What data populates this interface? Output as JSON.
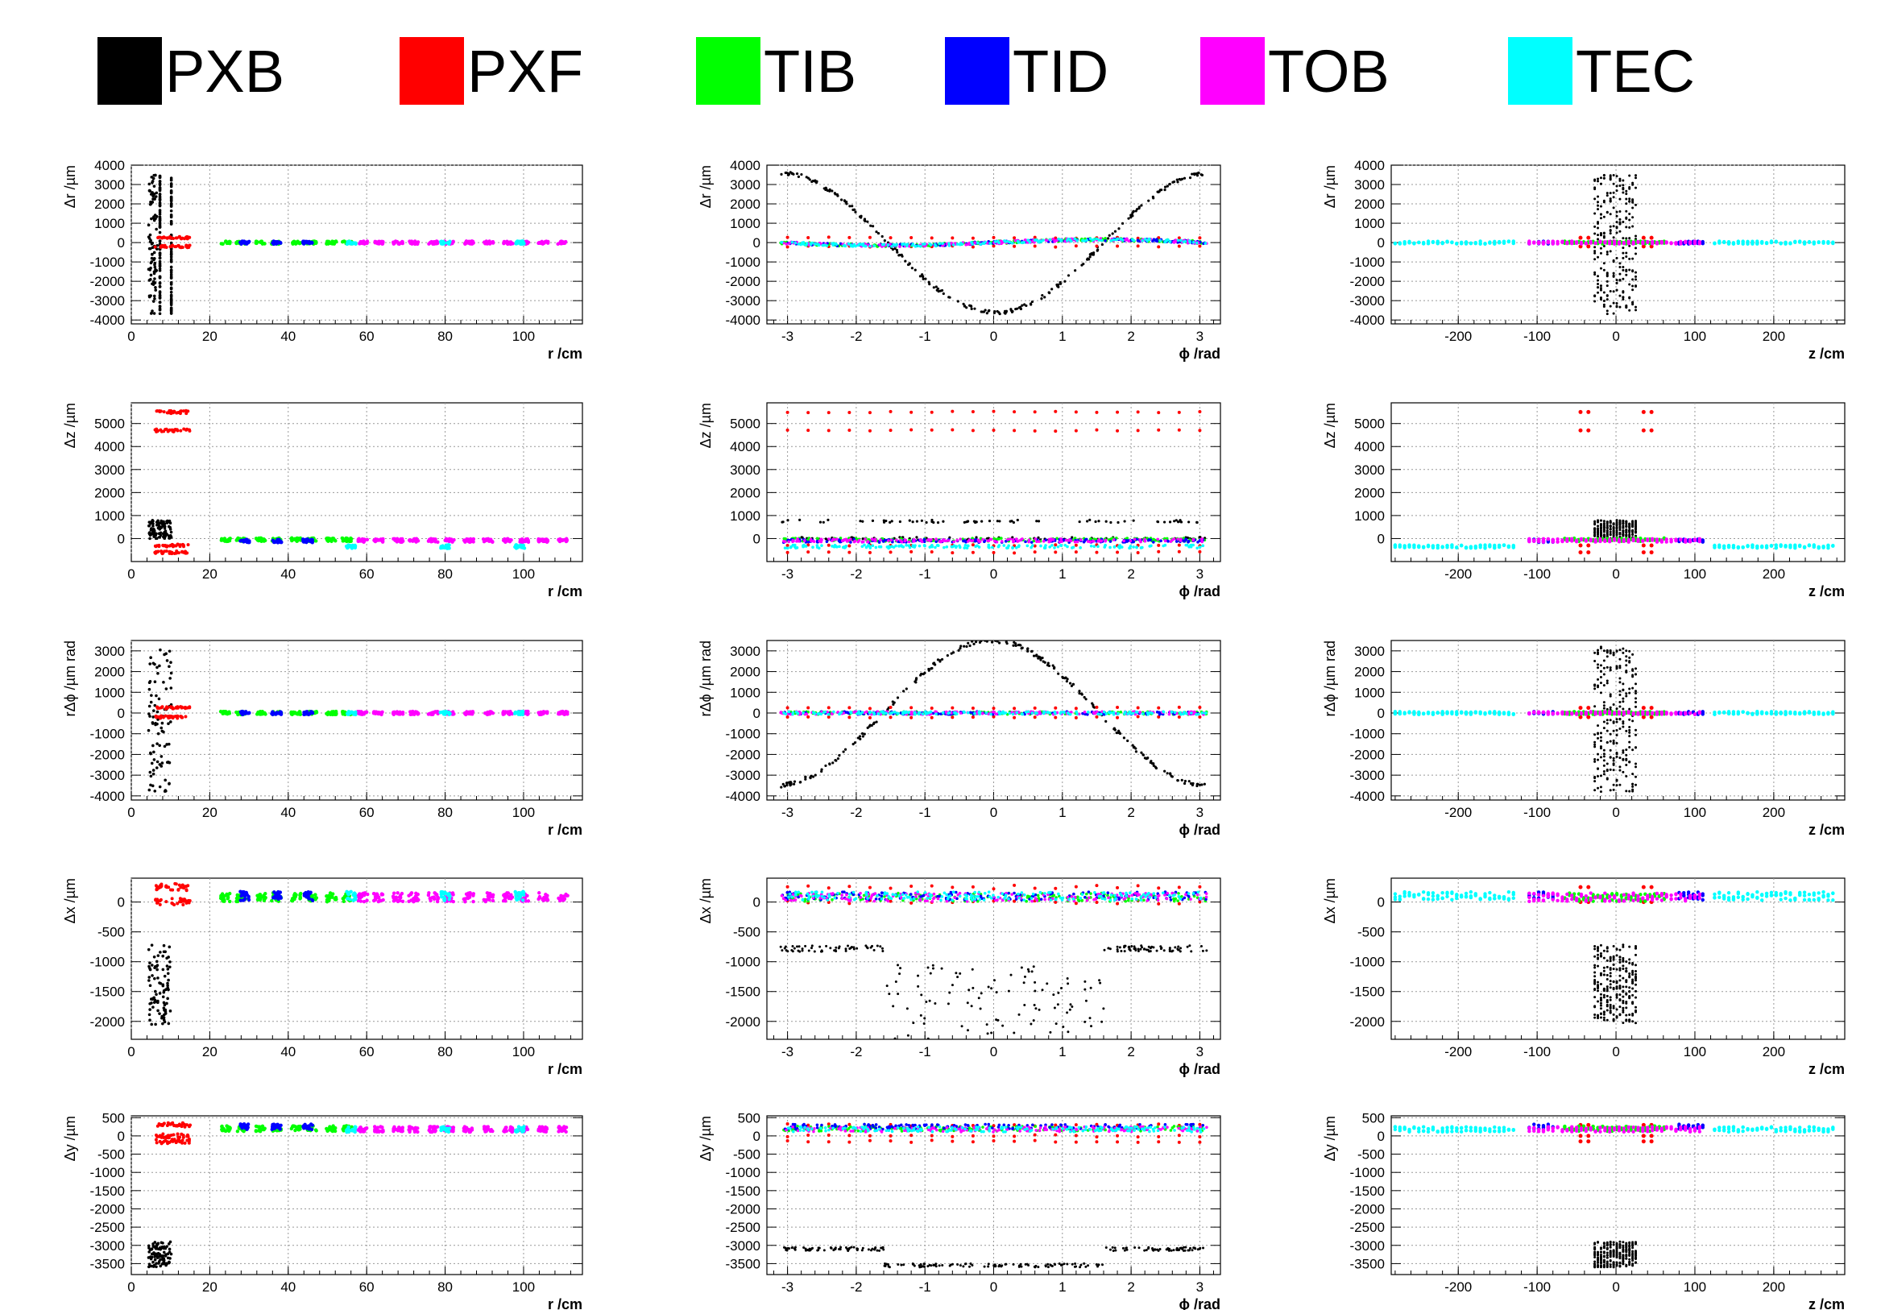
{
  "legend": [
    {
      "label": "PXB",
      "color": "#000000"
    },
    {
      "label": "PXF",
      "color": "#ff0000"
    },
    {
      "label": "TIB",
      "color": "#00ff00"
    },
    {
      "label": "TID",
      "color": "#0000ff"
    },
    {
      "label": "TOB",
      "color": "#ff00ff"
    },
    {
      "label": "TEC",
      "color": "#00ffff"
    }
  ],
  "chart_data": {
    "type": "scatter",
    "grid": true,
    "columns": [
      {
        "xlabel": "r /cm",
        "xlim": [
          0,
          115
        ],
        "xticks": [
          "0",
          "20",
          "40",
          "60",
          "80",
          "100"
        ]
      },
      {
        "xlabel": "ϕ /rad",
        "xlim": [
          -3.3,
          3.3
        ],
        "xticks": [
          "-3",
          "-2",
          "-1",
          "0",
          "1",
          "2",
          "3"
        ]
      },
      {
        "xlabel": "z /cm",
        "xlim": [
          -285,
          290
        ],
        "xticks": [
          "-200",
          "-100",
          "0",
          "100",
          "200"
        ]
      }
    ],
    "rows": [
      {
        "ylabel": "Δr /µm",
        "ylim": [
          -4200,
          4000
        ],
        "yticks": [
          "-4000",
          "-3000",
          "-2000",
          "-1000",
          "0",
          "1000",
          "2000",
          "3000",
          "4000"
        ]
      },
      {
        "ylabel": "Δz /µm",
        "ylim": [
          -1000,
          5900
        ],
        "yticks": [
          "0",
          "1000",
          "2000",
          "3000",
          "4000",
          "5000"
        ]
      },
      {
        "ylabel": "rΔϕ /µm rad",
        "ylim": [
          -4200,
          3500
        ],
        "yticks": [
          "-4000",
          "-3000",
          "-2000",
          "-1000",
          "0",
          "1000",
          "2000",
          "3000"
        ]
      },
      {
        "ylabel": "Δx /µm",
        "ylim": [
          -2300,
          400
        ],
        "yticks": [
          "-2000",
          "-1500",
          "-1000",
          "-500",
          "0"
        ]
      },
      {
        "ylabel": "Δy /µm",
        "ylim": [
          -3800,
          550
        ],
        "yticks": [
          "-3500",
          "-3000",
          "-2500",
          "-2000",
          "-1500",
          "-1000",
          "-500",
          "0",
          "500"
        ]
      }
    ],
    "series": [
      {
        "name": "PXB",
        "color": "#000000",
        "by_row": [
          {
            "r": [
              [
                4.4,
                6.6
              ],
              [
                7.3,
                7.3
              ],
              [
                10.2,
                10.2
              ]
            ],
            "r_y": [
              -3700,
              3500
            ],
            "phi_curve": "sin",
            "phi_amp": 3600,
            "phi_shift": -1.6,
            "z_range": [
              -27,
              27
            ],
            "z_y": [
              -3700,
              3500
            ]
          },
          {
            "r": [
              [
                4.4,
                10.2
              ]
            ],
            "r_y": [
              0,
              800
            ],
            "phi_y": [
              0,
              750
            ],
            "z_range": [
              -27,
              27
            ],
            "z_y": [
              0,
              800
            ]
          },
          {
            "r": [
              [
                4.4,
                10.2
              ]
            ],
            "r_y": [
              -3800,
              3200
            ],
            "phi_curve": "sin",
            "phi_amp": 3500,
            "phi_shift": 1.6,
            "z_range": [
              -27,
              27
            ],
            "z_y": [
              -3800,
              3200
            ]
          },
          {
            "r": [
              [
                4.4,
                10.2
              ]
            ],
            "r_y": [
              -2050,
              -700
            ],
            "phi_levels": [
              -780,
              -850,
              -1400,
              -2000
            ],
            "z_range": [
              -27,
              27
            ],
            "z_y": [
              -2050,
              -700
            ]
          },
          {
            "r": [
              [
                4.4,
                10.2
              ]
            ],
            "r_y": [
              -3600,
              -2900
            ],
            "phi_levels": [
              -3100,
              -3550
            ],
            "z_range": [
              -27,
              27
            ],
            "z_y": [
              -3600,
              -2900
            ]
          }
        ]
      },
      {
        "name": "PXF",
        "color": "#ff0000",
        "by_row": [
          {
            "r": [
              [
                6,
                15
              ]
            ],
            "y": [
              -200,
              250
            ],
            "z_range": [
              -50,
              50
            ]
          },
          {
            "r": [
              [
                6,
                15
              ]
            ],
            "y_levels": [
              5500,
              4700,
              -300,
              -600
            ],
            "z_range": [
              -50,
              50
            ]
          },
          {
            "r": [
              [
                6,
                15
              ]
            ],
            "y": [
              -200,
              250
            ],
            "z_range": [
              -50,
              50
            ]
          },
          {
            "r": [
              [
                6,
                15
              ]
            ],
            "y": [
              0,
              250
            ],
            "z_range": [
              -50,
              50
            ]
          },
          {
            "r": [
              [
                6,
                15
              ]
            ],
            "y_levels": [
              300,
              0,
              -150
            ],
            "z_range": [
              -50,
              50
            ]
          }
        ]
      },
      {
        "name": "TIB",
        "color": "#00ff00",
        "r_layers": [
          24,
          28,
          33,
          37,
          42,
          46,
          51,
          55
        ],
        "z_range": [
          -65,
          65
        ],
        "offsets_by_row": [
          0,
          -50,
          0,
          80,
          200
        ]
      },
      {
        "name": "TID",
        "color": "#0000ff",
        "r_layers": [
          29,
          37,
          45
        ],
        "z_ranges": [
          [
            -110,
            -80
          ],
          [
            80,
            110
          ]
        ],
        "offsets_by_row": [
          0,
          -100,
          0,
          100,
          250
        ]
      },
      {
        "name": "TOB",
        "color": "#ff00ff",
        "r_layers": [
          59,
          63,
          68,
          72,
          77,
          81,
          86,
          91,
          96,
          100,
          105,
          110
        ],
        "z_range": [
          -110,
          110
        ],
        "offsets_by_row": [
          0,
          -80,
          0,
          80,
          180
        ]
      },
      {
        "name": "TEC",
        "color": "#00ffff",
        "r_layers": [
          56,
          80,
          99
        ],
        "z_ranges": [
          [
            -280,
            -125
          ],
          [
            125,
            280
          ]
        ],
        "offsets_by_row": [
          0,
          -350,
          0,
          100,
          180
        ]
      }
    ]
  }
}
